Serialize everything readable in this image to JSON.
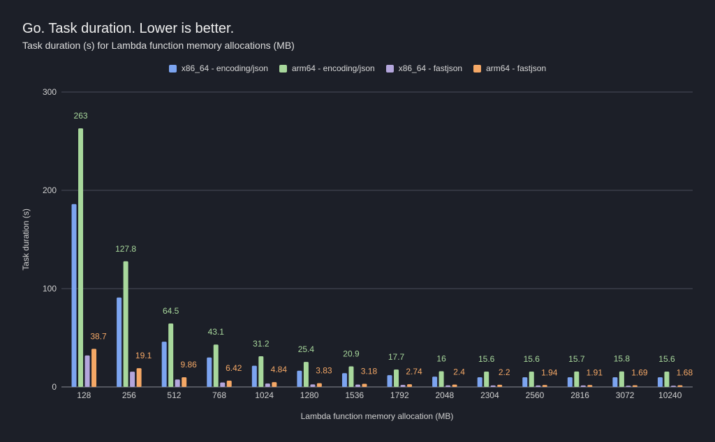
{
  "chart_data": {
    "type": "bar",
    "title": "Go. Task duration. Lower is better.",
    "subtitle": "Task duration (s) for Lambda function memory allocations (MB)",
    "xlabel": "Lambda function memory allocation (MB)",
    "ylabel": "Task duration (s)",
    "ylim": [
      0,
      300
    ],
    "yticks": [
      0,
      100,
      200,
      300
    ],
    "grid": true,
    "legend_position": "top-center",
    "categories": [
      "128",
      "256",
      "512",
      "768",
      "1024",
      "1280",
      "1536",
      "1792",
      "2048",
      "2304",
      "2560",
      "2816",
      "3072",
      "10240"
    ],
    "series": [
      {
        "name": "x86_64 - encoding/json",
        "color": "#7ca4f0",
        "values": [
          186,
          91,
          46,
          30,
          21.5,
          16.5,
          14,
          12,
          10.5,
          9.8,
          9.8,
          9.8,
          9.8,
          9.8
        ],
        "show_labels": false
      },
      {
        "name": "arm64 - encoding/json",
        "color": "#a8d89c",
        "values": [
          263,
          127.8,
          64.5,
          43.1,
          31.2,
          25.4,
          20.9,
          17.7,
          16,
          15.6,
          15.6,
          15.7,
          15.8,
          15.6
        ],
        "show_labels": true
      },
      {
        "name": "x86_64 - fastjson",
        "color": "#b4a6dc",
        "values": [
          32,
          15.5,
          7.5,
          4.5,
          3.5,
          2.6,
          2.4,
          2,
          1.6,
          1.5,
          1.5,
          1.5,
          1.2,
          1.2
        ],
        "show_labels": false
      },
      {
        "name": "arm64 - fastjson",
        "color": "#f5a866",
        "values": [
          38.7,
          19.1,
          9.86,
          6.42,
          4.84,
          3.83,
          3.18,
          2.74,
          2.4,
          2.2,
          1.94,
          1.91,
          1.69,
          1.68
        ],
        "show_labels": true
      }
    ]
  }
}
